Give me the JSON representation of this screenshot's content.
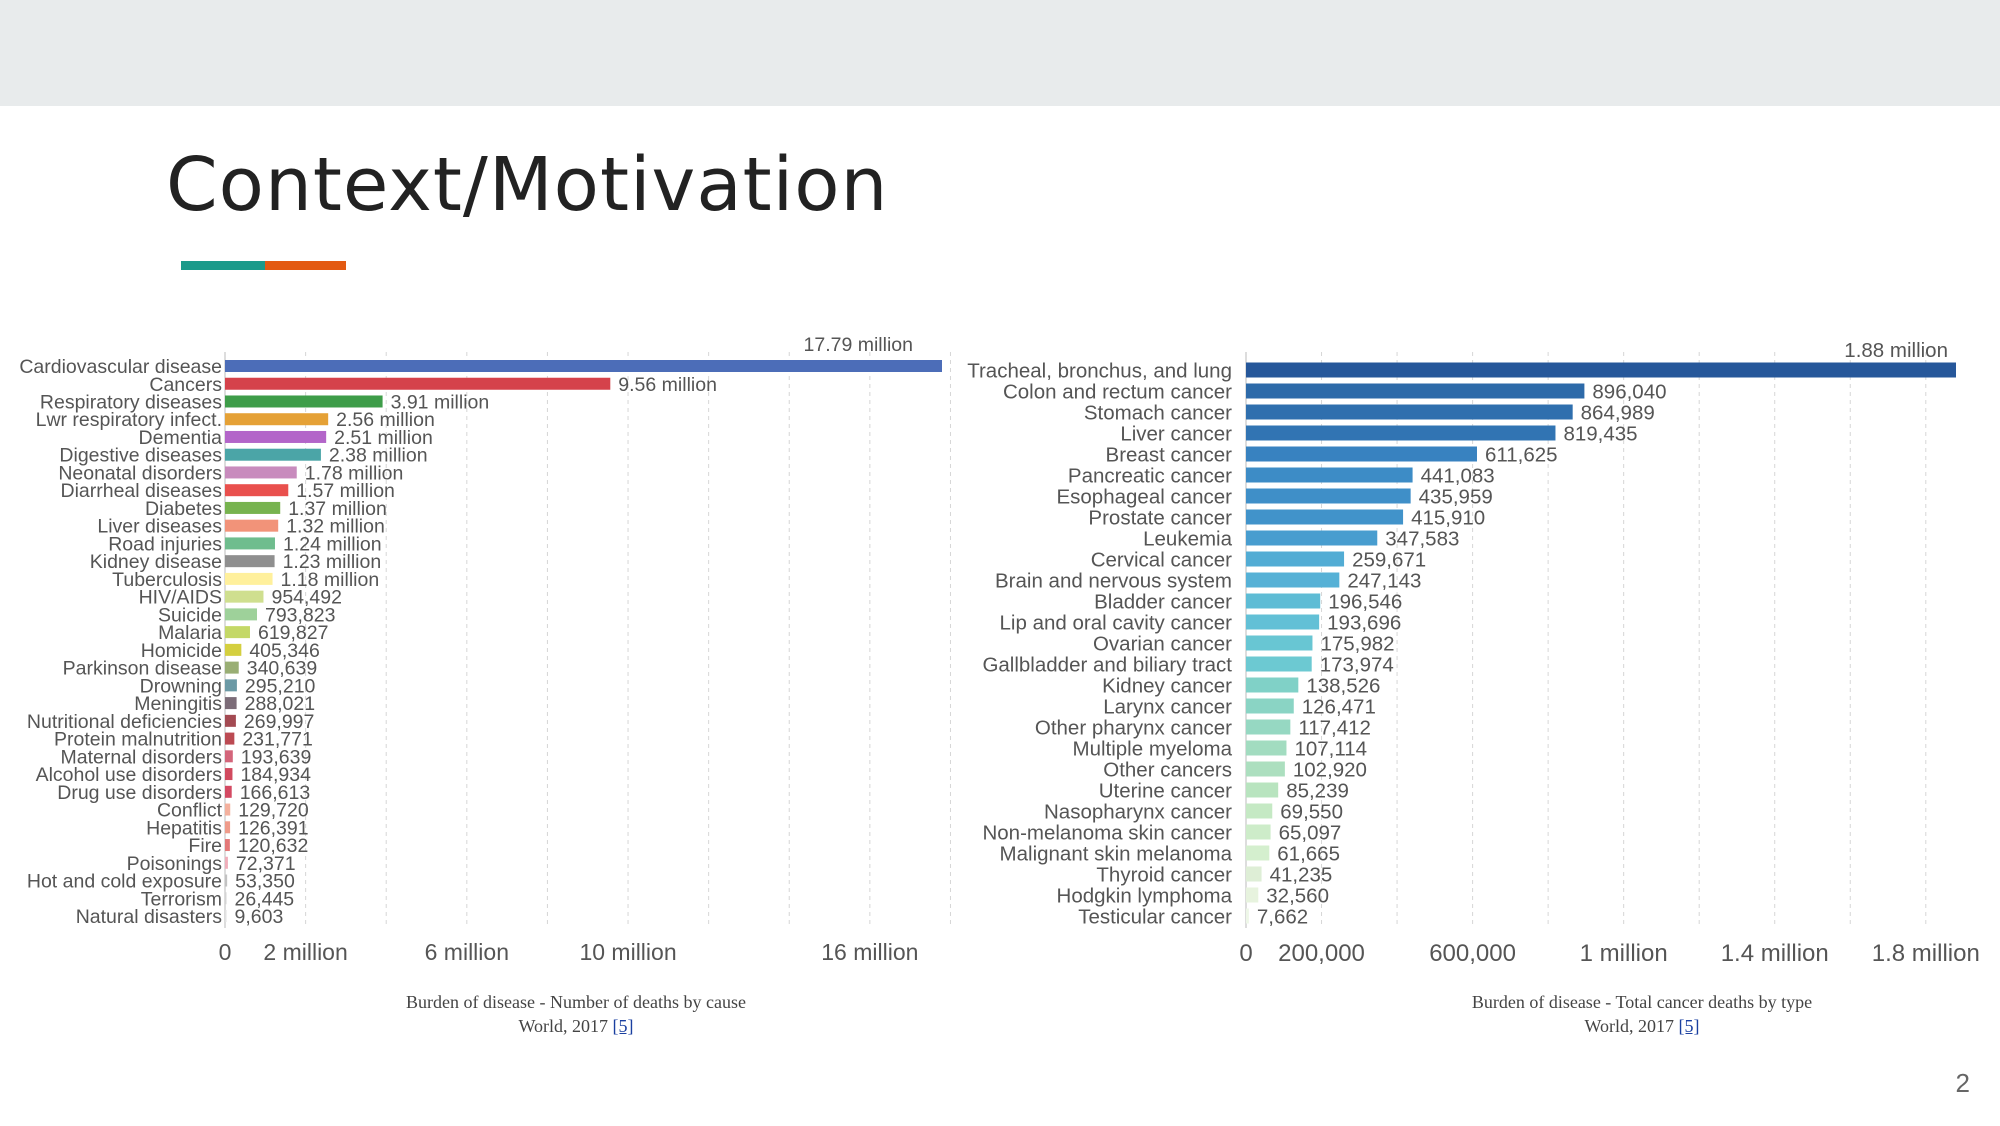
{
  "slide": {
    "title": "Context/Motivation",
    "page_number": "2",
    "accent_colors": [
      "#1b9a8a",
      "#e35a12"
    ]
  },
  "captions": {
    "left": {
      "line1": "Burden of disease - Number of deaths by cause",
      "line2": "World, 2017",
      "ref": "[5]"
    },
    "right": {
      "line1": "Burden of disease  -  Total cancer deaths by type",
      "line2": "World, 2017",
      "ref": "[5]"
    }
  },
  "chart_data": [
    {
      "type": "bar",
      "orientation": "horizontal",
      "xlim": [
        0,
        17790000
      ],
      "categories": [
        "Cardiovascular disease",
        "Cancers",
        "Respiratory diseases",
        "Lwr respiratory infect.",
        "Dementia",
        "Digestive diseases",
        "Neonatal disorders",
        "Diarrheal diseases",
        "Diabetes",
        "Liver diseases",
        "Road injuries",
        "Kidney disease",
        "Tuberculosis",
        "HIV/AIDS",
        "Suicide",
        "Malaria",
        "Homicide",
        "Parkinson disease",
        "Drowning",
        "Meningitis",
        "Nutritional deficiencies",
        "Protein malnutrition",
        "Maternal disorders",
        "Alcohol use disorders",
        "Drug use disorders",
        "Conflict",
        "Hepatitis",
        "Fire",
        "Poisonings",
        "Hot and cold exposure",
        "Terrorism",
        "Natural disasters"
      ],
      "values": [
        17790000,
        9560000,
        3910000,
        2560000,
        2510000,
        2380000,
        1780000,
        1570000,
        1370000,
        1320000,
        1240000,
        1230000,
        1180000,
        954492,
        793823,
        619827,
        405346,
        340639,
        295210,
        288021,
        269997,
        231771,
        193639,
        184934,
        166613,
        129720,
        126391,
        120632,
        72371,
        53350,
        26445,
        9603
      ],
      "labels": [
        "17.79 million",
        "9.56 million",
        "3.91 million",
        "2.56 million",
        "2.51 million",
        "2.38 million",
        "1.78 million",
        "1.57 million",
        "1.37 million",
        "1.32 million",
        "1.24 million",
        "1.23 million",
        "1.18 million",
        "954,492",
        "793,823",
        "619,827",
        "405,346",
        "340,639",
        "295,210",
        "288,021",
        "269,997",
        "231,771",
        "193,639",
        "184,934",
        "166,613",
        "129,720",
        "126,391",
        "120,632",
        "72,371",
        "53,350",
        "26,445",
        "9,603"
      ],
      "colors": [
        "#4c6db8",
        "#d5424b",
        "#3e9d49",
        "#e5a136",
        "#b365c9",
        "#4ba5a7",
        "#c88bbd",
        "#e9504d",
        "#77b34f",
        "#f29379",
        "#6fbd8e",
        "#8f8f8f",
        "#fff09c",
        "#cfdf8f",
        "#9ed19a",
        "#c4d867",
        "#d4cf3f",
        "#99ae74",
        "#6b99a5",
        "#7c6c78",
        "#a34a52",
        "#bb4a52",
        "#d3657a",
        "#d14a5e",
        "#d44a63",
        "#f4b19e",
        "#ef9b8a",
        "#e47979",
        "#f0aeba",
        "#c2c2c2",
        "#d4d4d4",
        "#e2e2e2"
      ],
      "ticks": [
        {
          "value": 0,
          "label": "0"
        },
        {
          "value": 2000000,
          "label": "2 million"
        },
        {
          "value": 6000000,
          "label": "6 million"
        },
        {
          "value": 10000000,
          "label": "10 million"
        },
        {
          "value": 16000000,
          "label": "16 million"
        }
      ],
      "gridlines": [
        0,
        2000000,
        4000000,
        6000000,
        8000000,
        10000000,
        12000000,
        14000000,
        16000000,
        18000000
      ],
      "grid": true
    },
    {
      "type": "bar",
      "orientation": "horizontal",
      "xlim": [
        0,
        1880000
      ],
      "categories": [
        "Tracheal, bronchus, and lung",
        "Colon and rectum cancer",
        "Stomach cancer",
        "Liver cancer",
        "Breast cancer",
        "Pancreatic cancer",
        "Esophageal cancer",
        "Prostate cancer",
        "Leukemia",
        "Cervical cancer",
        "Brain and nervous system",
        "Bladder cancer",
        "Lip and oral cavity cancer",
        "Ovarian cancer",
        "Gallbladder and biliary tract",
        "Kidney cancer",
        "Larynx cancer",
        "Other pharynx cancer",
        "Multiple myeloma",
        "Other cancers",
        "Uterine cancer",
        "Nasopharynx cancer",
        "Non-melanoma skin cancer",
        "Malignant skin melanoma",
        "Thyroid cancer",
        "Hodgkin lymphoma",
        "Testicular cancer"
      ],
      "values": [
        1880000,
        896040,
        864989,
        819435,
        611625,
        441083,
        435959,
        415910,
        347583,
        259671,
        247143,
        196546,
        193696,
        175982,
        173974,
        138526,
        126471,
        117412,
        107114,
        102920,
        85239,
        69550,
        65097,
        61665,
        41235,
        32560,
        7662
      ],
      "labels": [
        "1.88 million",
        "896,040",
        "864,989",
        "819,435",
        "611,625",
        "441,083",
        "435,959",
        "415,910",
        "347,583",
        "259,671",
        "247,143",
        "196,546",
        "193,696",
        "175,982",
        "173,974",
        "138,526",
        "126,471",
        "117,412",
        "107,114",
        "102,920",
        "85,239",
        "69,550",
        "65,097",
        "61,665",
        "41,235",
        "32,560",
        "7,662"
      ],
      "colors": [
        "#26579a",
        "#2d6aa9",
        "#2f6fae",
        "#3174b3",
        "#3882c0",
        "#3d8cc6",
        "#3f8fc8",
        "#4193ca",
        "#489dcf",
        "#52acd4",
        "#56b1d6",
        "#5ebcd5",
        "#62c0d6",
        "#68c6d3",
        "#6cc9d2",
        "#80d1c7",
        "#8ad4c4",
        "#96d8c2",
        "#a2dcc0",
        "#acdfbf",
        "#b8e4bf",
        "#c5e9c4",
        "#cdecc9",
        "#d4efce",
        "#deeed6",
        "#e7f3de",
        "#eef7e8"
      ],
      "ticks": [
        {
          "value": 0,
          "label": "0"
        },
        {
          "value": 200000,
          "label": "200,000"
        },
        {
          "value": 600000,
          "label": "600,000"
        },
        {
          "value": 1000000,
          "label": "1 million"
        },
        {
          "value": 1400000,
          "label": "1.4 million"
        },
        {
          "value": 1800000,
          "label": "1.8 million"
        }
      ],
      "gridlines": [
        0,
        200000,
        400000,
        600000,
        800000,
        1000000,
        1200000,
        1400000,
        1600000,
        1800000
      ],
      "grid": true
    }
  ]
}
